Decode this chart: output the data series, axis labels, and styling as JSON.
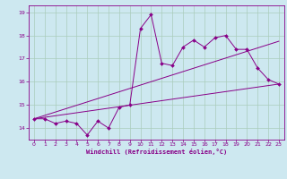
{
  "bg_color": "#cde8f0",
  "line_color": "#880088",
  "grid_color": "#aaccbb",
  "xlabel": "Windchill (Refroidissement éolien,°C)",
  "xlim": [
    -0.5,
    23.5
  ],
  "ylim": [
    13.5,
    19.3
  ],
  "yticks": [
    14,
    15,
    16,
    17,
    18,
    19
  ],
  "xticks": [
    0,
    1,
    2,
    3,
    4,
    5,
    6,
    7,
    8,
    9,
    10,
    11,
    12,
    13,
    14,
    15,
    16,
    17,
    18,
    19,
    20,
    21,
    22,
    23
  ],
  "series1_x": [
    0,
    1,
    2,
    3,
    4,
    5,
    6,
    7,
    8,
    9,
    10,
    11,
    12,
    13,
    14,
    15,
    16,
    17,
    18,
    19,
    20,
    21,
    22,
    23
  ],
  "series1_y": [
    14.4,
    14.4,
    14.2,
    14.3,
    14.2,
    13.7,
    14.3,
    14.0,
    14.9,
    15.0,
    18.3,
    18.9,
    16.8,
    16.7,
    17.5,
    17.8,
    17.5,
    17.9,
    18.0,
    17.4,
    17.4,
    16.6,
    16.1,
    15.9
  ],
  "series2_x": [
    0,
    23
  ],
  "series2_y": [
    14.4,
    17.75
  ],
  "series3_x": [
    0,
    23
  ],
  "series3_y": [
    14.4,
    15.9
  ]
}
